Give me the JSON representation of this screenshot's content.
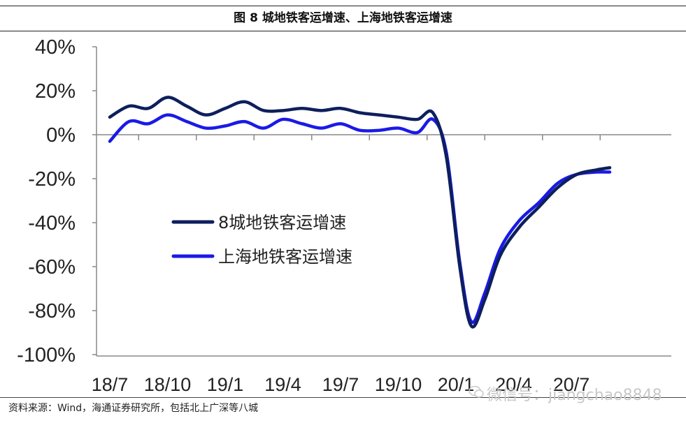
{
  "figure": {
    "title": "图  8 城地铁客运增速、上海地铁客运增速",
    "source": "资料来源：Wind，海通证券研究所，包括北上广深等八城",
    "watermark": "微信号：jiangchao8848"
  },
  "chart_data": {
    "type": "line",
    "title": "图  8 城地铁客运增速、上海地铁客运增速",
    "xlabel": "",
    "ylabel": "",
    "ylim": [
      -100,
      40
    ],
    "xlim": [
      0,
      26
    ],
    "y_ticks": [
      40,
      20,
      0,
      -20,
      -40,
      -60,
      -80,
      -100
    ],
    "y_tick_labels": [
      "40%",
      "20%",
      "0%",
      "-20%",
      "-40%",
      "-60%",
      "-80%",
      "-100%"
    ],
    "x_ticks": [
      0,
      3,
      6,
      9,
      12,
      15,
      18,
      21,
      24
    ],
    "x_tick_labels": [
      "18/7",
      "18/10",
      "19/1",
      "19/4",
      "19/7",
      "19/10",
      "20/1",
      "20/4",
      "20/7"
    ],
    "grid": false,
    "legend": "center-left",
    "series": [
      {
        "name": "8城地铁客运增速",
        "color": "#0d1f5c",
        "points": [
          [
            0,
            8
          ],
          [
            1,
            13
          ],
          [
            2,
            12
          ],
          [
            3,
            17
          ],
          [
            4,
            13
          ],
          [
            5,
            9
          ],
          [
            6,
            12
          ],
          [
            7,
            15
          ],
          [
            8,
            11
          ],
          [
            9,
            11
          ],
          [
            10,
            12
          ],
          [
            11,
            11
          ],
          [
            12,
            12
          ],
          [
            13,
            10
          ],
          [
            14,
            9
          ],
          [
            15,
            8
          ],
          [
            16,
            7
          ],
          [
            16.8,
            10
          ],
          [
            17.5,
            -10
          ],
          [
            18.2,
            -60
          ],
          [
            18.8,
            -87
          ],
          [
            19.5,
            -75
          ],
          [
            20.3,
            -55
          ],
          [
            21.3,
            -42
          ],
          [
            22.3,
            -33
          ],
          [
            23.3,
            -24
          ],
          [
            24.3,
            -18
          ],
          [
            25.3,
            -16
          ],
          [
            26,
            -15
          ]
        ]
      },
      {
        "name": "上海地铁客运增速",
        "color": "#1a1ae6",
        "points": [
          [
            0,
            -3
          ],
          [
            1,
            6
          ],
          [
            2,
            5
          ],
          [
            3,
            9
          ],
          [
            4,
            6
          ],
          [
            5,
            3
          ],
          [
            6,
            4
          ],
          [
            7,
            6
          ],
          [
            8,
            3
          ],
          [
            9,
            7
          ],
          [
            10,
            5
          ],
          [
            11,
            3
          ],
          [
            12,
            5
          ],
          [
            13,
            2
          ],
          [
            14,
            2
          ],
          [
            15,
            3
          ],
          [
            16,
            1
          ],
          [
            16.8,
            7
          ],
          [
            17.5,
            -8
          ],
          [
            18.2,
            -58
          ],
          [
            18.8,
            -85
          ],
          [
            19.5,
            -72
          ],
          [
            20.3,
            -52
          ],
          [
            21.3,
            -39
          ],
          [
            22.3,
            -31
          ],
          [
            23.3,
            -22
          ],
          [
            24.3,
            -18
          ],
          [
            25.3,
            -17
          ],
          [
            26,
            -17
          ]
        ]
      }
    ]
  }
}
